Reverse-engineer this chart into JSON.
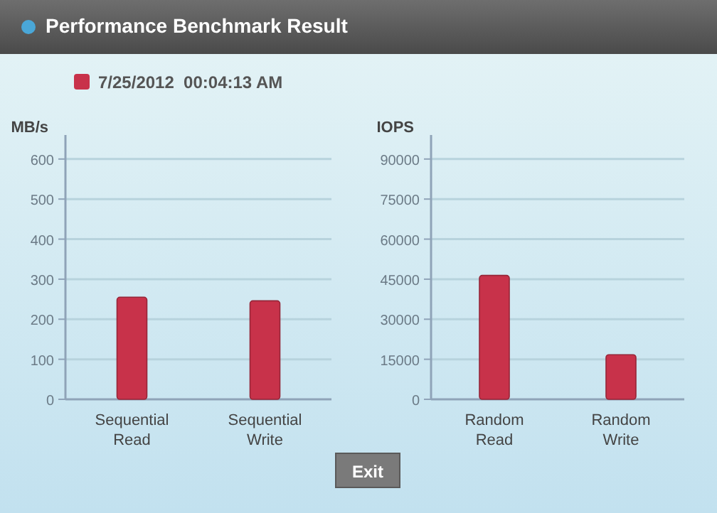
{
  "chart_data": [
    {
      "type": "bar",
      "title": "Performance Benchmark Result",
      "ylabel": "MB/s",
      "categories": [
        "Sequential Read",
        "Sequential Write"
      ],
      "series": [
        {
          "name": "7/25/2012  00:04:13 AM",
          "color": "#c8324a",
          "values": [
            255,
            246
          ]
        }
      ],
      "ylim": [
        0,
        660
      ],
      "yticks": [
        0,
        100,
        200,
        300,
        400,
        500,
        600
      ],
      "grid": "y",
      "legend": "top left",
      "annotations": [
        "Exit"
      ]
    },
    {
      "type": "bar",
      "ylabel": "IOPS",
      "categories": [
        "Random Read",
        "Random Write"
      ],
      "series": [
        {
          "color": "#c8324a",
          "values": [
            46400,
            16700
          ]
        }
      ],
      "ylim": [
        0,
        99000
      ],
      "yticks": [
        0,
        15000,
        30000,
        45000,
        60000,
        75000,
        90000
      ],
      "grid": "y"
    }
  ]
}
